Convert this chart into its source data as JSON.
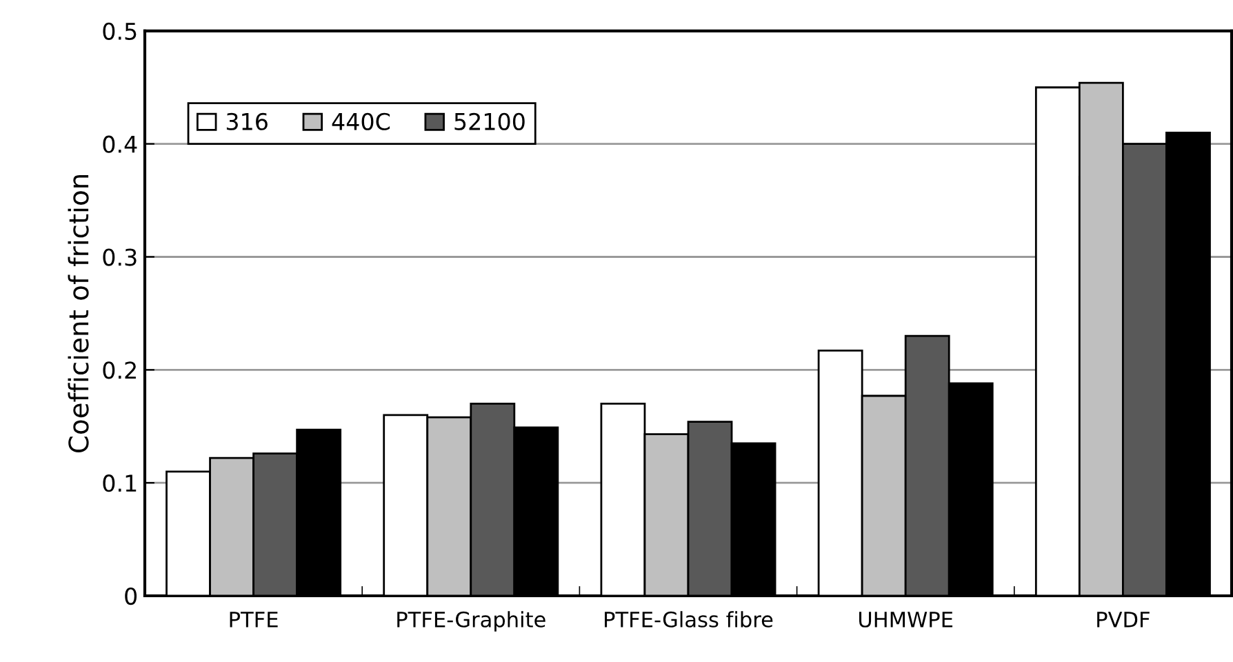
{
  "chart_data": {
    "type": "bar",
    "ylabel": "Coefficient of friction",
    "categories": [
      "PTFE",
      "PTFE-Graphite",
      "PTFE-Glass fibre",
      "UHMWPE",
      "PVDF"
    ],
    "series": [
      {
        "name": "316",
        "color": "#ffffff",
        "values": [
          0.11,
          0.16,
          0.17,
          0.217,
          0.45
        ]
      },
      {
        "name": "440C",
        "color": "#bfbfbf",
        "values": [
          0.122,
          0.158,
          0.143,
          0.177,
          0.454
        ]
      },
      {
        "name": "52100",
        "color": "#595959",
        "values": [
          0.126,
          0.17,
          0.154,
          0.23,
          0.4
        ]
      },
      {
        "color": "#000000",
        "values": [
          0.147,
          0.149,
          0.135,
          0.188,
          0.41
        ]
      }
    ],
    "ylim": [
      0,
      0.5
    ],
    "yticks": [
      {
        "value": 0,
        "label": "0"
      },
      0.1,
      0.2,
      0.3,
      0.4,
      0.5
    ],
    "grid": "y",
    "legend": "top left"
  }
}
